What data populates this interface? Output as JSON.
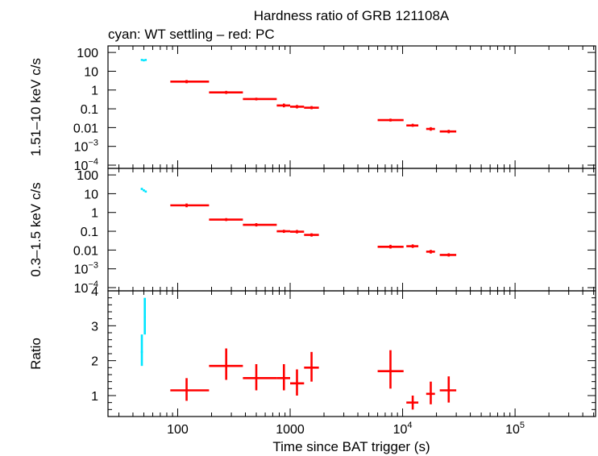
{
  "chart_data": {
    "type": "scatter",
    "title": "Hardness ratio of GRB 121108A",
    "subtitle": "cyan: WT settling – red: PC",
    "xlabel": "Time since BAT trigger (s)",
    "xscale": "log",
    "xlim": [
      24,
      520000
    ],
    "x_ticks": [
      {
        "value": 100,
        "base": "100",
        "exp": ""
      },
      {
        "value": 1000,
        "base": "1000",
        "exp": ""
      },
      {
        "value": 10000,
        "base": "10",
        "exp": "4"
      },
      {
        "value": 100000,
        "base": "10",
        "exp": "5"
      }
    ],
    "colors": {
      "WT settling": "#00e5ff",
      "PC": "#ff0000"
    },
    "panels": [
      {
        "id": "hard",
        "ylabel": "1.51–10 keV c/s",
        "yscale": "log",
        "ylim": [
          0.0001,
          150
        ],
        "y_ticks": [
          {
            "value": 100,
            "base": "100",
            "exp": ""
          },
          {
            "value": 10,
            "base": "10",
            "exp": ""
          },
          {
            "value": 1,
            "base": "1",
            "exp": ""
          },
          {
            "value": 0.1,
            "base": "0.1",
            "exp": ""
          },
          {
            "value": 0.01,
            "base": "0.01",
            "exp": ""
          },
          {
            "value": 0.001,
            "base": "10",
            "exp": "−3"
          },
          {
            "value": 0.0001,
            "base": "10",
            "exp": "−4"
          }
        ],
        "series": [
          {
            "name": "WT settling",
            "points": [
              {
                "x": 48,
                "y": 40,
                "xlo": 47,
                "xhi": 49,
                "ylo": 38,
                "yhi": 42
              },
              {
                "x": 50,
                "y": 38,
                "xlo": 49,
                "xhi": 51,
                "ylo": 36,
                "yhi": 40
              },
              {
                "x": 52,
                "y": 40,
                "xlo": 51,
                "xhi": 53,
                "ylo": 38,
                "yhi": 42
              }
            ]
          },
          {
            "name": "PC",
            "points": [
              {
                "x": 120,
                "y": 2.8,
                "xlo": 86,
                "xhi": 190,
                "ylo": 2.3,
                "yhi": 3.4
              },
              {
                "x": 270,
                "y": 0.75,
                "xlo": 190,
                "xhi": 380,
                "ylo": 0.62,
                "yhi": 0.9
              },
              {
                "x": 500,
                "y": 0.33,
                "xlo": 380,
                "xhi": 760,
                "ylo": 0.28,
                "yhi": 0.39
              },
              {
                "x": 880,
                "y": 0.15,
                "xlo": 760,
                "xhi": 1000,
                "ylo": 0.12,
                "yhi": 0.19
              },
              {
                "x": 1150,
                "y": 0.13,
                "xlo": 1000,
                "xhi": 1330,
                "ylo": 0.105,
                "yhi": 0.16
              },
              {
                "x": 1550,
                "y": 0.115,
                "xlo": 1330,
                "xhi": 1800,
                "ylo": 0.095,
                "yhi": 0.14
              },
              {
                "x": 7800,
                "y": 0.025,
                "xlo": 6000,
                "xhi": 10200,
                "ylo": 0.021,
                "yhi": 0.03
              },
              {
                "x": 12300,
                "y": 0.013,
                "xlo": 10800,
                "xhi": 13800,
                "ylo": 0.011,
                "yhi": 0.016
              },
              {
                "x": 17800,
                "y": 0.0085,
                "xlo": 16200,
                "xhi": 19400,
                "ylo": 0.0068,
                "yhi": 0.0105
              },
              {
                "x": 25700,
                "y": 0.0062,
                "xlo": 21400,
                "xhi": 30000,
                "ylo": 0.005,
                "yhi": 0.0076
              }
            ]
          }
        ]
      },
      {
        "id": "soft",
        "ylabel": "0.3–1.5 keV c/s",
        "yscale": "log",
        "ylim": [
          0.0001,
          150
        ],
        "y_ticks": [
          {
            "value": 100,
            "base": "100",
            "exp": ""
          },
          {
            "value": 10,
            "base": "10",
            "exp": ""
          },
          {
            "value": 1,
            "base": "1",
            "exp": ""
          },
          {
            "value": 0.1,
            "base": "0.1",
            "exp": ""
          },
          {
            "value": 0.01,
            "base": "0.01",
            "exp": ""
          },
          {
            "value": 0.001,
            "base": "10",
            "exp": "−3"
          },
          {
            "value": 0.0001,
            "base": "10",
            "exp": "−4"
          }
        ],
        "series": [
          {
            "name": "WT settling",
            "points": [
              {
                "x": 48,
                "y": 18,
                "xlo": 47,
                "xhi": 49,
                "ylo": 16,
                "yhi": 20
              },
              {
                "x": 50,
                "y": 15,
                "xlo": 49,
                "xhi": 51,
                "ylo": 13.5,
                "yhi": 17
              },
              {
                "x": 52,
                "y": 13,
                "xlo": 51,
                "xhi": 53,
                "ylo": 11.5,
                "yhi": 14.5
              }
            ]
          },
          {
            "name": "PC",
            "points": [
              {
                "x": 120,
                "y": 2.4,
                "xlo": 86,
                "xhi": 190,
                "ylo": 1.9,
                "yhi": 3.0
              },
              {
                "x": 270,
                "y": 0.42,
                "xlo": 190,
                "xhi": 380,
                "ylo": 0.35,
                "yhi": 0.5
              },
              {
                "x": 500,
                "y": 0.22,
                "xlo": 380,
                "xhi": 760,
                "ylo": 0.18,
                "yhi": 0.27
              },
              {
                "x": 880,
                "y": 0.1,
                "xlo": 760,
                "xhi": 1000,
                "ylo": 0.082,
                "yhi": 0.12
              },
              {
                "x": 1150,
                "y": 0.095,
                "xlo": 1000,
                "xhi": 1330,
                "ylo": 0.077,
                "yhi": 0.117
              },
              {
                "x": 1550,
                "y": 0.064,
                "xlo": 1330,
                "xhi": 1800,
                "ylo": 0.052,
                "yhi": 0.078
              },
              {
                "x": 7800,
                "y": 0.015,
                "xlo": 6000,
                "xhi": 10200,
                "ylo": 0.012,
                "yhi": 0.019
              },
              {
                "x": 12300,
                "y": 0.016,
                "xlo": 10800,
                "xhi": 13800,
                "ylo": 0.013,
                "yhi": 0.02
              },
              {
                "x": 17800,
                "y": 0.0082,
                "xlo": 16200,
                "xhi": 19400,
                "ylo": 0.0065,
                "yhi": 0.0102
              },
              {
                "x": 25700,
                "y": 0.0055,
                "xlo": 21400,
                "xhi": 30000,
                "ylo": 0.0045,
                "yhi": 0.0067
              }
            ]
          }
        ]
      },
      {
        "id": "ratio",
        "ylabel": "Ratio",
        "yscale": "linear",
        "ylim": [
          0.4,
          4
        ],
        "y_ticks": [
          {
            "value": 1,
            "base": "1",
            "exp": ""
          },
          {
            "value": 2,
            "base": "2",
            "exp": ""
          },
          {
            "value": 3,
            "base": "3",
            "exp": ""
          },
          {
            "value": 4,
            "base": "4",
            "exp": ""
          }
        ],
        "series": [
          {
            "name": "WT settling",
            "points": [
              {
                "x": 48,
                "y": 2.25,
                "xlo": 47,
                "xhi": 49,
                "ylo": 1.85,
                "yhi": 2.75
              },
              {
                "x": 51,
                "y": 3.25,
                "xlo": 50,
                "xhi": 52,
                "ylo": 2.75,
                "yhi": 3.8
              }
            ]
          },
          {
            "name": "PC",
            "points": [
              {
                "x": 120,
                "y": 1.15,
                "xlo": 86,
                "xhi": 190,
                "ylo": 0.85,
                "yhi": 1.5
              },
              {
                "x": 270,
                "y": 1.85,
                "xlo": 190,
                "xhi": 380,
                "ylo": 1.45,
                "yhi": 2.35
              },
              {
                "x": 500,
                "y": 1.5,
                "xlo": 380,
                "xhi": 760,
                "ylo": 1.15,
                "yhi": 1.9
              },
              {
                "x": 880,
                "y": 1.5,
                "xlo": 760,
                "xhi": 1000,
                "ylo": 1.15,
                "yhi": 1.9
              },
              {
                "x": 1150,
                "y": 1.35,
                "xlo": 1000,
                "xhi": 1330,
                "ylo": 1.0,
                "yhi": 1.75
              },
              {
                "x": 1550,
                "y": 1.8,
                "xlo": 1330,
                "xhi": 1800,
                "ylo": 1.4,
                "yhi": 2.25
              },
              {
                "x": 7800,
                "y": 1.7,
                "xlo": 6000,
                "xhi": 10200,
                "ylo": 1.2,
                "yhi": 2.3
              },
              {
                "x": 12300,
                "y": 0.8,
                "xlo": 10800,
                "xhi": 13800,
                "ylo": 0.6,
                "yhi": 1.0
              },
              {
                "x": 17800,
                "y": 1.05,
                "xlo": 16200,
                "xhi": 19400,
                "ylo": 0.75,
                "yhi": 1.4
              },
              {
                "x": 25700,
                "y": 1.15,
                "xlo": 21400,
                "xhi": 30000,
                "ylo": 0.8,
                "yhi": 1.55
              }
            ]
          }
        ]
      }
    ]
  }
}
